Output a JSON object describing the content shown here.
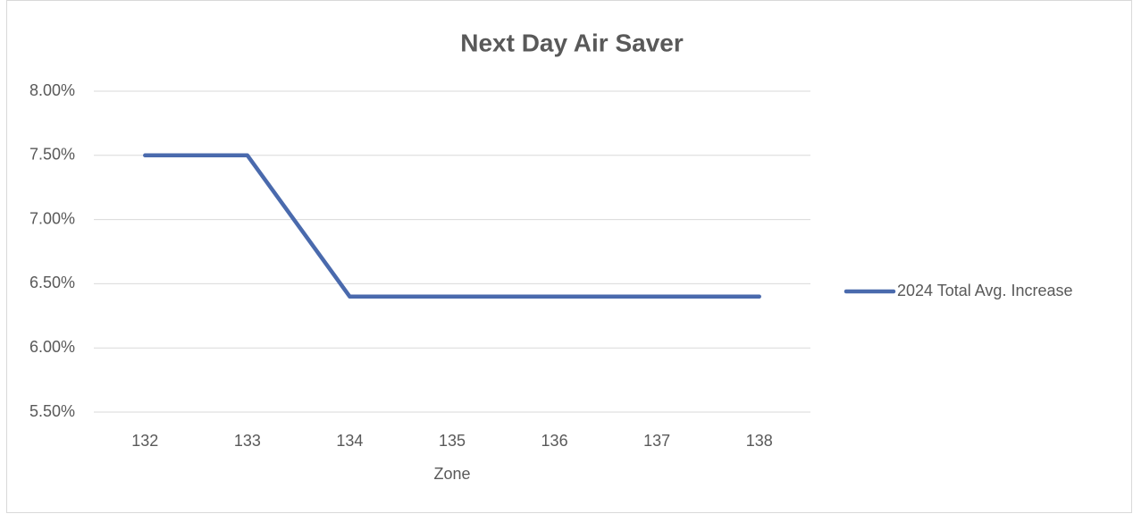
{
  "chart_data": {
    "type": "line",
    "title": "Next Day Air Saver",
    "x_label": "Zone",
    "categories": [
      "132",
      "133",
      "134",
      "135",
      "136",
      "137",
      "138"
    ],
    "series": [
      {
        "name": "2024 Total Avg. Increase",
        "color": "#4a6aad",
        "values": [
          7.5,
          7.5,
          6.4,
          6.4,
          6.4,
          6.4,
          6.4
        ]
      }
    ],
    "ylim": [
      5.5,
      8
    ],
    "yticks": [
      {
        "value": 5.5,
        "label": "5.50%"
      },
      {
        "value": 6,
        "label": "6.00%"
      },
      {
        "value": 6.5,
        "label": "6.50%"
      },
      {
        "value": 7,
        "label": "7.00%"
      },
      {
        "value": 7.5,
        "label": "7.50%"
      },
      {
        "value": 8,
        "label": "8.00%"
      }
    ],
    "grid": true,
    "legend": "right"
  }
}
